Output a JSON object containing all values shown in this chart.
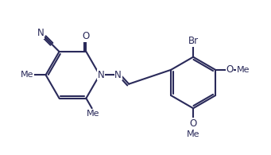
{
  "background_color": "#ffffff",
  "line_color": "#2a2a5a",
  "line_width": 1.5,
  "font_size": 8.5,
  "figsize": [
    3.41,
    1.95
  ],
  "dpi": 100,
  "xlim": [
    0.0,
    10.5
  ],
  "ylim": [
    0.0,
    6.0
  ]
}
